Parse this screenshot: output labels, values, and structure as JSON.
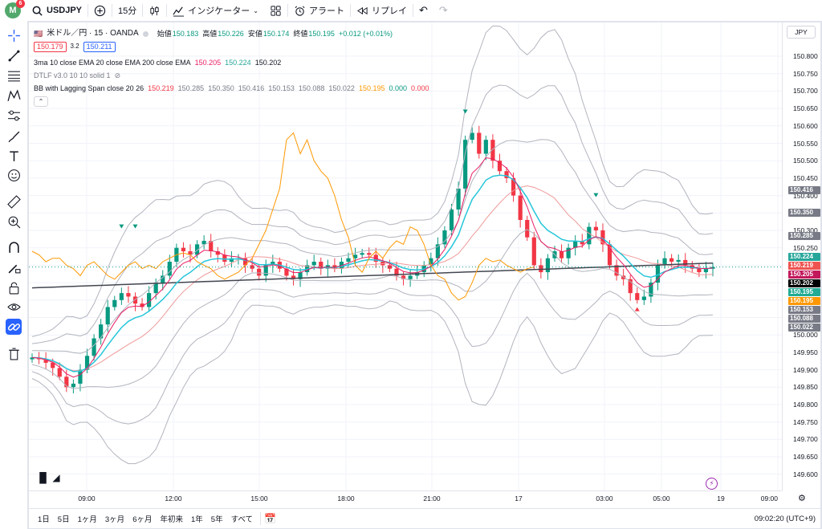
{
  "toolbar": {
    "avatar_letter": "M",
    "notification_count": "6",
    "symbol": "USDJPY",
    "interval": "15分",
    "indicators_label": "インジケーター",
    "alert_label": "アラート",
    "replay_label": "リプレイ"
  },
  "legend": {
    "title": "米ドル／円 · 15 · OANDA",
    "open_label": "始値",
    "open": "150.183",
    "high_label": "高値",
    "high": "150.226",
    "low_label": "安値",
    "low": "150.174",
    "close_label": "終値",
    "close": "150.195",
    "change": "+0.012 (+0.01%)",
    "sell_price": "150.179",
    "spread": "3.2",
    "buy_price": "150.211",
    "ma_name": "3ma 10 close EMA 20 close EMA 200 close EMA",
    "ma_v1": "150.205",
    "ma_v2": "150.224",
    "ma_v3": "150.202",
    "dtlf_name": "DTLF v3.0 10 10 solid 1",
    "bb_name": "BB with Lagging Span close 20 26",
    "bb_values": [
      "150.219",
      "150.285",
      "150.350",
      "150.416",
      "150.153",
      "150.088",
      "150.022",
      "150.195",
      "0.000",
      "0.000"
    ]
  },
  "currency": "JPY",
  "yaxis_ticks": [
    "150.800",
    "150.750",
    "150.700",
    "150.650",
    "150.600",
    "150.550",
    "150.500",
    "150.450",
    "150.400",
    "150.350",
    "150.300",
    "150.250",
    "150.200",
    "150.150",
    "150.100",
    "150.050",
    "150.000",
    "149.950",
    "149.900",
    "149.850",
    "149.800",
    "149.750",
    "149.700",
    "149.650",
    "149.600"
  ],
  "price_labels": [
    {
      "value": "150.416",
      "color": "#787b86"
    },
    {
      "value": "150.350",
      "color": "#787b86"
    },
    {
      "value": "150.285",
      "color": "#787b86"
    },
    {
      "value": "150.224",
      "color": "#26a69a"
    },
    {
      "value": "150.219",
      "color": "#ef5350"
    },
    {
      "value": "150.205",
      "color": "#c2185b"
    },
    {
      "value": "150.202",
      "color": "#000000"
    },
    {
      "value": "150.195",
      "color": "#22ab94"
    },
    {
      "value": "150.195",
      "color": "#ff9800"
    },
    {
      "value": "150.153",
      "color": "#787b86"
    },
    {
      "value": "150.088",
      "color": "#787b86"
    },
    {
      "value": "150.022",
      "color": "#787b86"
    }
  ],
  "xaxis_ticks": [
    "09:00",
    "12:00",
    "15:00",
    "18:00",
    "21:00",
    "17",
    "03:00",
    "05:00",
    "19",
    "09:00"
  ],
  "ranges": [
    "1日",
    "5日",
    "1ヶ月",
    "3ヶ月",
    "6ヶ月",
    "年初来",
    "1年",
    "5年",
    "すべて"
  ],
  "clock": "09:02:20 (UTC+9)",
  "colors": {
    "up": "#089981",
    "down": "#f23645",
    "ema10": "#e91e63",
    "ema20": "#26c6da",
    "ema200": "#434651",
    "bb": "#b2b5be",
    "lagging": "#ff9800"
  }
}
